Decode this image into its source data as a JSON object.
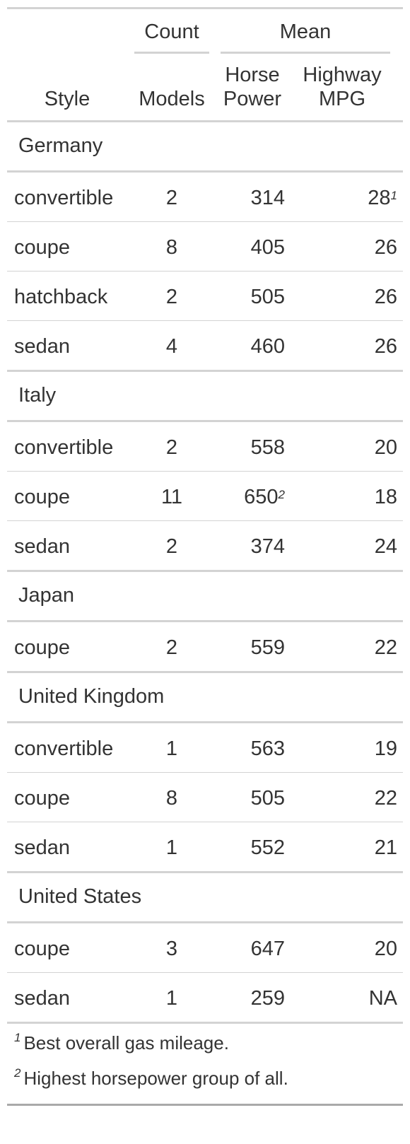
{
  "header": {
    "spanners": {
      "count": "Count",
      "mean": "Mean"
    },
    "columns": {
      "style": "Style",
      "models": "Models",
      "hp_line1": "Horse",
      "hp_line2": "Power",
      "mpg_line1": "Highway",
      "mpg_line2": "MPG"
    }
  },
  "groups": [
    {
      "label": "Germany",
      "rows": [
        {
          "style": "convertible",
          "models": "2",
          "hp": "314",
          "mpg": "28",
          "mpg_mark": "1"
        },
        {
          "style": "coupe",
          "models": "8",
          "hp": "405",
          "mpg": "26"
        },
        {
          "style": "hatchback",
          "models": "2",
          "hp": "505",
          "mpg": "26"
        },
        {
          "style": "sedan",
          "models": "4",
          "hp": "460",
          "mpg": "26"
        }
      ]
    },
    {
      "label": "Italy",
      "rows": [
        {
          "style": "convertible",
          "models": "2",
          "hp": "558",
          "mpg": "20"
        },
        {
          "style": "coupe",
          "models": "11",
          "hp": "650",
          "hp_mark": "2",
          "mpg": "18"
        },
        {
          "style": "sedan",
          "models": "2",
          "hp": "374",
          "mpg": "24"
        }
      ]
    },
    {
      "label": "Japan",
      "rows": [
        {
          "style": "coupe",
          "models": "2",
          "hp": "559",
          "mpg": "22"
        }
      ]
    },
    {
      "label": "United Kingdom",
      "rows": [
        {
          "style": "convertible",
          "models": "1",
          "hp": "563",
          "mpg": "19"
        },
        {
          "style": "coupe",
          "models": "8",
          "hp": "505",
          "mpg": "22"
        },
        {
          "style": "sedan",
          "models": "1",
          "hp": "552",
          "mpg": "21"
        }
      ]
    },
    {
      "label": "United States",
      "rows": [
        {
          "style": "coupe",
          "models": "3",
          "hp": "647",
          "mpg": "20"
        },
        {
          "style": "sedan",
          "models": "1",
          "hp": "259",
          "mpg": "NA"
        }
      ]
    }
  ],
  "footnotes": [
    {
      "mark": "1",
      "text": "Best overall gas mileage."
    },
    {
      "mark": "2",
      "text": "Highest horsepower group of all."
    }
  ]
}
